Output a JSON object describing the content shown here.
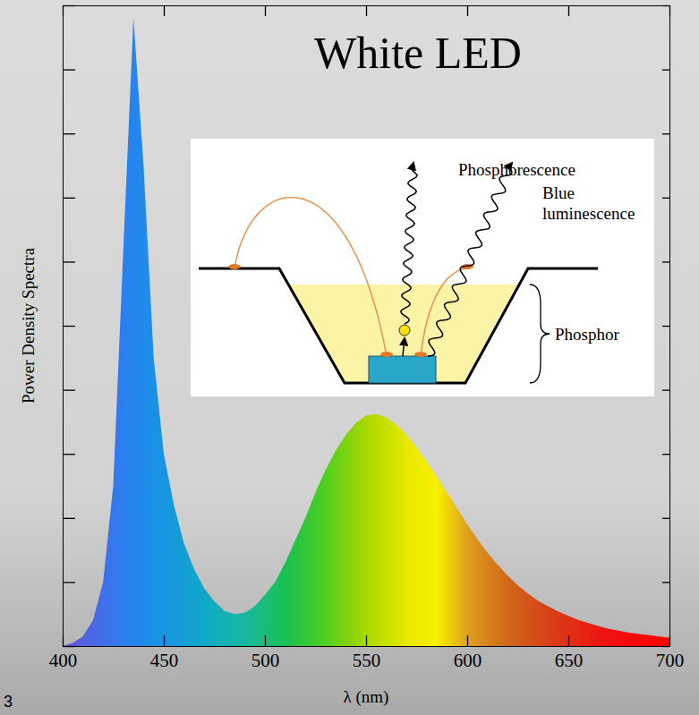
{
  "chart_data": {
    "type": "area",
    "title": "White LED",
    "x_label": "λ (nm)",
    "y_label": "Power Density Spectra",
    "annotations": [
      "Phosphorescence",
      "Blue luminescence",
      "Phosphor"
    ],
    "x": [
      400,
      405,
      410,
      415,
      420,
      425,
      430,
      435,
      440,
      445,
      450,
      455,
      460,
      465,
      470,
      475,
      480,
      485,
      490,
      495,
      500,
      505,
      510,
      515,
      520,
      525,
      530,
      535,
      540,
      545,
      550,
      555,
      560,
      565,
      570,
      575,
      580,
      585,
      590,
      595,
      600,
      605,
      610,
      615,
      620,
      625,
      630,
      635,
      640,
      645,
      650,
      655,
      660,
      665,
      670,
      675,
      680,
      685,
      690,
      695,
      700
    ],
    "values": [
      0,
      0.005,
      0.015,
      0.04,
      0.1,
      0.25,
      0.62,
      0.98,
      0.75,
      0.45,
      0.3,
      0.22,
      0.16,
      0.12,
      0.09,
      0.07,
      0.055,
      0.05,
      0.052,
      0.062,
      0.08,
      0.1,
      0.13,
      0.165,
      0.2,
      0.24,
      0.275,
      0.305,
      0.33,
      0.348,
      0.36,
      0.362,
      0.357,
      0.346,
      0.33,
      0.31,
      0.288,
      0.264,
      0.24,
      0.215,
      0.19,
      0.167,
      0.146,
      0.127,
      0.11,
      0.095,
      0.082,
      0.071,
      0.062,
      0.054,
      0.047,
      0.041,
      0.036,
      0.031,
      0.027,
      0.024,
      0.021,
      0.019,
      0.017,
      0.015,
      0.013
    ],
    "xlim": [
      400,
      700
    ],
    "ylim": [
      0,
      1
    ],
    "xticks": [
      400,
      450,
      500,
      550,
      600,
      650,
      700
    ],
    "yticks": [
      0,
      0.1,
      0.2,
      0.3,
      0.4,
      0.5,
      0.6,
      0.7,
      0.8,
      0.9,
      1
    ],
    "tick_labels": "x",
    "grid": false
  },
  "slide_number": "3"
}
